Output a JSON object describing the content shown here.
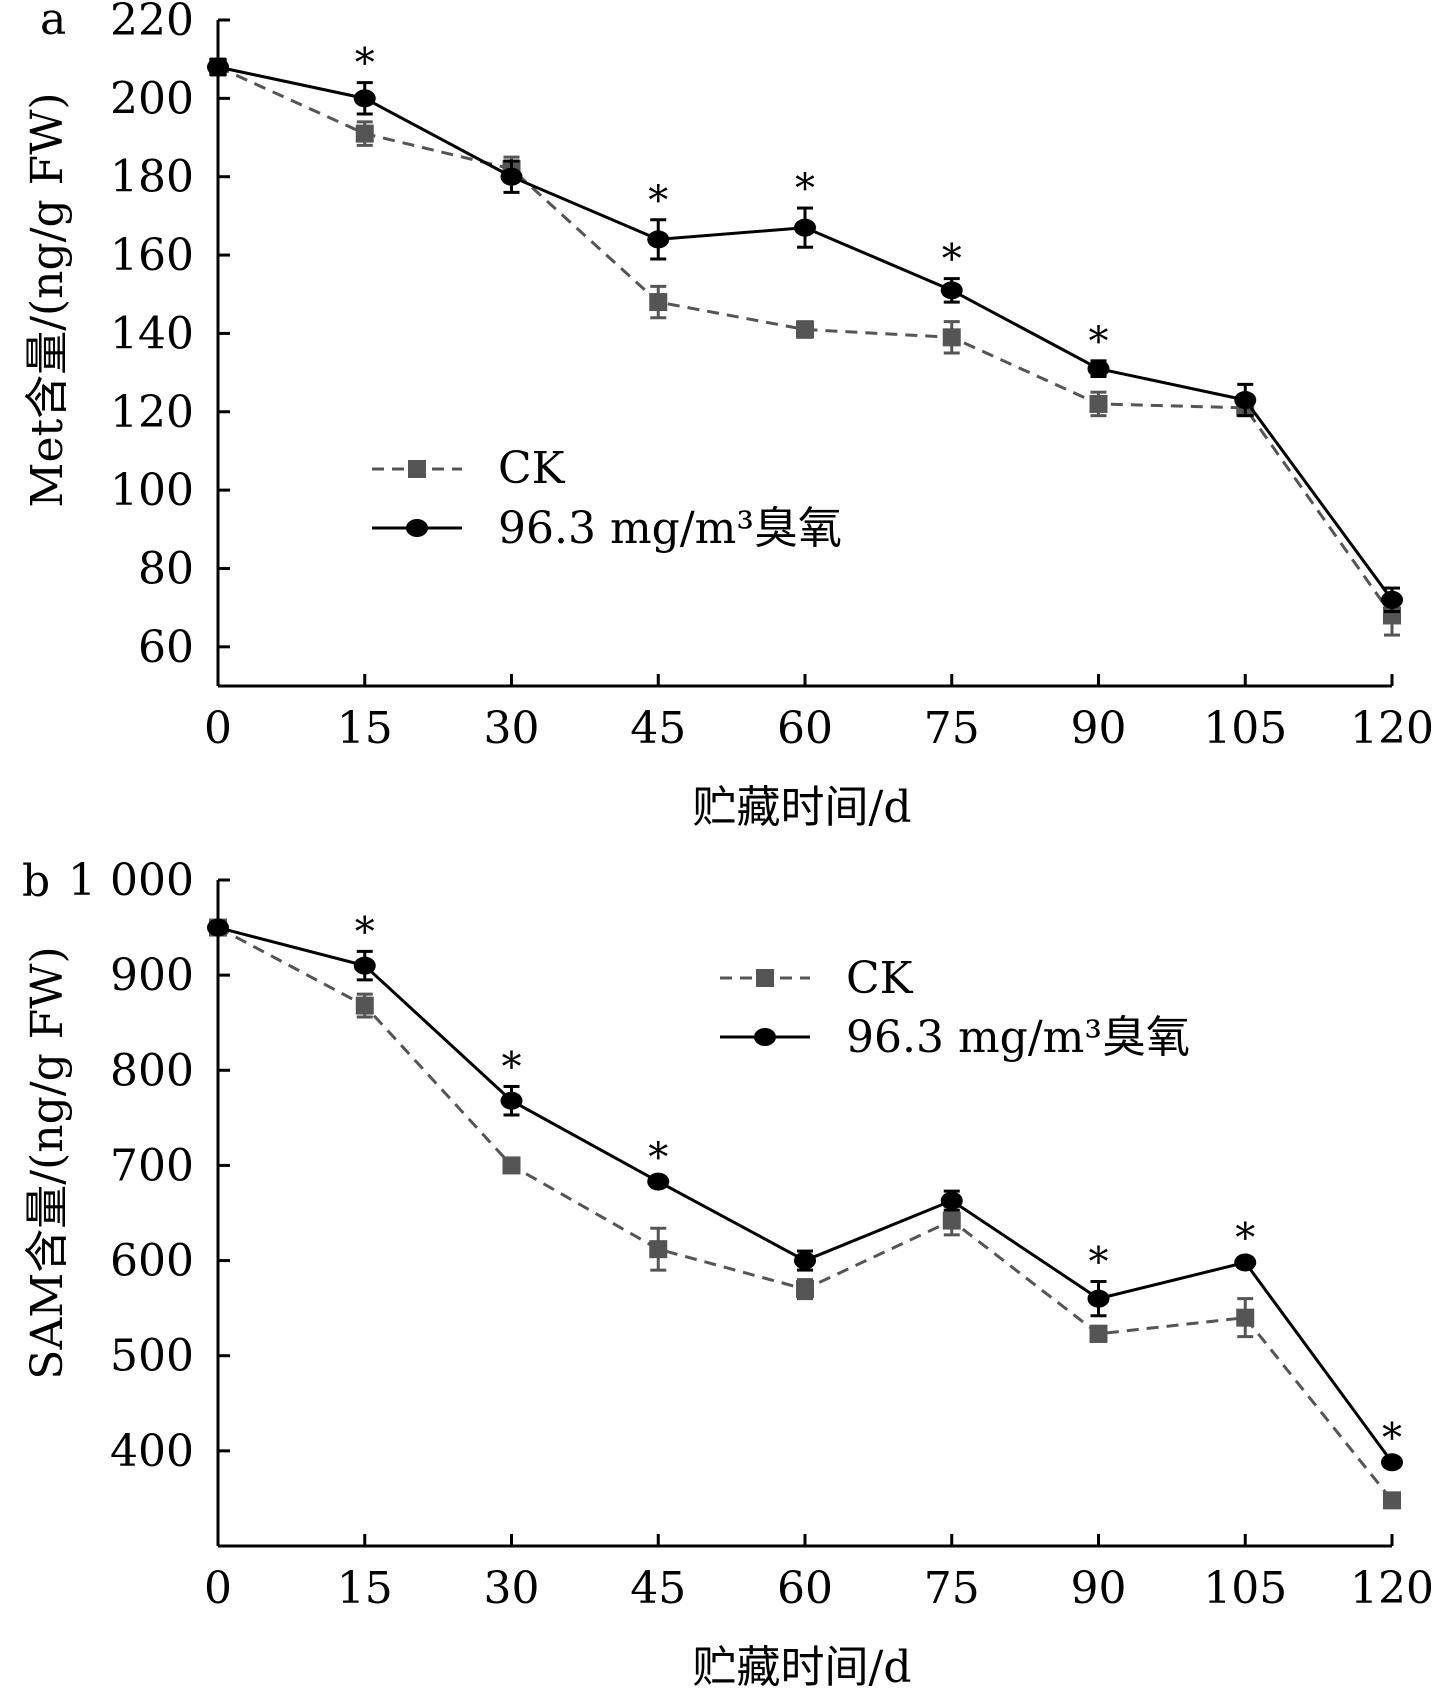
{
  "colors": {
    "ck": "#555555",
    "ozone": "#000000",
    "axis": "#000000"
  },
  "chart_data": [
    {
      "type": "line",
      "panel_label": "a",
      "ylabel": "Met含量/(ng/g FW)",
      "xlabel": "贮藏时间/d",
      "x": [
        0,
        15,
        30,
        45,
        60,
        75,
        90,
        105,
        120
      ],
      "xlim": [
        0,
        120
      ],
      "ylim": [
        50,
        220
      ],
      "yticks": [
        60,
        80,
        100,
        120,
        140,
        160,
        180,
        200,
        220
      ],
      "ytick_labels": [
        "60",
        "80",
        "100",
        "120",
        "140",
        "160",
        "180",
        "200",
        "220"
      ],
      "xtick_labels": [
        "0",
        "15",
        "30",
        "45",
        "60",
        "75",
        "90",
        "105",
        "120"
      ],
      "legend": {
        "position": "center-left"
      },
      "series": [
        {
          "name": "CK",
          "style": "dashed",
          "marker": "square",
          "color": "#555555",
          "values": [
            208,
            191,
            182,
            148,
            141,
            139,
            122,
            121,
            68
          ],
          "errors": [
            2,
            3,
            3,
            4,
            2,
            4,
            3,
            2,
            5
          ]
        },
        {
          "name": "96.3 mg/m³臭氧",
          "style": "solid",
          "marker": "circle",
          "color": "#000000",
          "values": [
            208,
            200,
            180,
            164,
            167,
            151,
            131,
            123,
            72
          ],
          "errors": [
            2,
            4,
            4,
            5,
            5,
            3,
            2,
            4,
            3
          ]
        }
      ],
      "annotations": [
        {
          "x": 15,
          "text": "*"
        },
        {
          "x": 45,
          "text": "*"
        },
        {
          "x": 60,
          "text": "*"
        },
        {
          "x": 75,
          "text": "*"
        },
        {
          "x": 90,
          "text": "*"
        }
      ]
    },
    {
      "type": "line",
      "panel_label": "b",
      "ylabel": "SAM含量/(ng/g FW)",
      "xlabel": "贮藏时间/d",
      "x": [
        0,
        15,
        30,
        45,
        60,
        75,
        90,
        105,
        120
      ],
      "xlim": [
        0,
        120
      ],
      "ylim": [
        300,
        1000
      ],
      "yticks": [
        400,
        500,
        600,
        700,
        800,
        900,
        1000
      ],
      "ytick_labels": [
        "400",
        "500",
        "600",
        "700",
        "800",
        "900",
        "1 000"
      ],
      "xtick_labels": [
        "0",
        "15",
        "30",
        "45",
        "60",
        "75",
        "90",
        "105",
        "120"
      ],
      "legend": {
        "position": "top-right"
      },
      "series": [
        {
          "name": "CK",
          "style": "dashed",
          "marker": "square",
          "color": "#555555",
          "values": [
            950,
            868,
            700,
            612,
            570,
            642,
            523,
            540,
            348
          ],
          "errors": [
            5,
            12,
            5,
            22,
            10,
            15,
            8,
            20,
            5
          ]
        },
        {
          "name": "96.3 mg/m³臭氧",
          "style": "solid",
          "marker": "circle",
          "color": "#000000",
          "values": [
            950,
            910,
            768,
            683,
            600,
            663,
            560,
            598,
            388
          ],
          "errors": [
            5,
            15,
            15,
            5,
            10,
            10,
            18,
            5,
            5
          ]
        }
      ],
      "annotations": [
        {
          "x": 15,
          "text": "*"
        },
        {
          "x": 30,
          "text": "*"
        },
        {
          "x": 45,
          "text": "*"
        },
        {
          "x": 90,
          "text": "*"
        },
        {
          "x": 105,
          "text": "*"
        },
        {
          "x": 120,
          "text": "*"
        }
      ]
    }
  ]
}
